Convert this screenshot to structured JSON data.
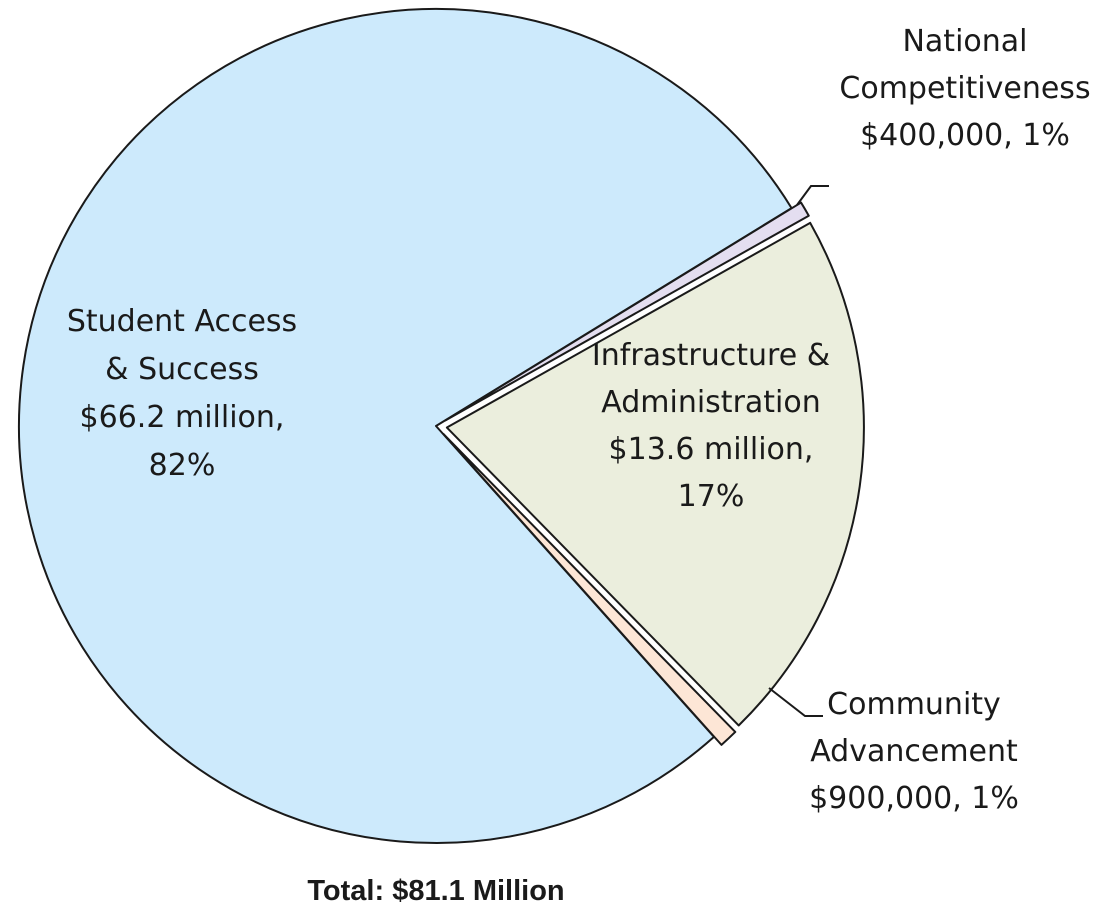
{
  "chart_data": {
    "type": "pie",
    "title": "",
    "total_label": "Total: $81.1 Million",
    "slices": [
      {
        "name": "Student Access & Success",
        "amount_label": "$66.2 million,",
        "percent_label": "82%",
        "value": 66.2,
        "percent": 82,
        "color": "#cdeafc",
        "label_lines": [
          "Student Access",
          "& Success",
          "$66.2 million,",
          "82%"
        ]
      },
      {
        "name": "National Competitiveness",
        "amount_label": "$400,000, 1%",
        "value": 0.4,
        "percent": 1,
        "color": "#e4def0",
        "label_lines": [
          "National",
          "Competitiveness",
          "$400,000, 1%"
        ]
      },
      {
        "name": "Infrastructure & Administration",
        "amount_label": "$13.6 million,",
        "percent_label": "17%",
        "value": 13.6,
        "percent": 17,
        "color": "#ebeedd",
        "label_lines": [
          "Infrastructure &",
          "Administration",
          "$13.6 million,",
          "17%"
        ]
      },
      {
        "name": "Community Advancement",
        "amount_label": "$900,000, 1%",
        "value": 0.9,
        "percent": 1,
        "color": "#fde6d6",
        "label_lines": [
          "Community",
          "Advancement",
          "$900,000, 1%"
        ]
      }
    ],
    "outline_color": "#1a1a1a"
  }
}
